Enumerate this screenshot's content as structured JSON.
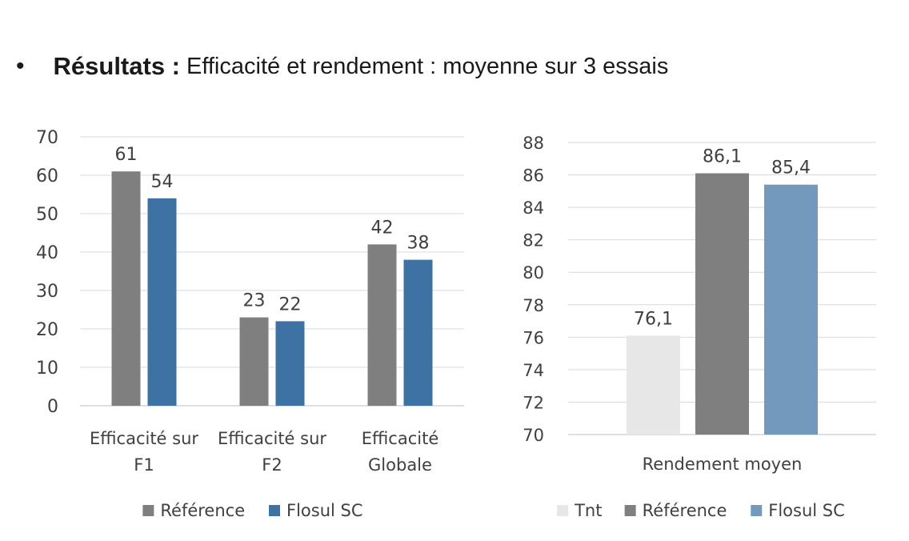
{
  "heading": {
    "bullet": "•",
    "bold": "Résultats :",
    "rest": "Efficacité et rendement : moyenne sur 3 essais"
  },
  "chart_data": [
    {
      "type": "bar",
      "categories": [
        [
          "Efficacité sur",
          "F1"
        ],
        [
          "Efficacité sur",
          "F2"
        ],
        [
          "Efficacité",
          "Globale"
        ]
      ],
      "series": [
        {
          "name": "Référence",
          "values": [
            61,
            23,
            42
          ],
          "color": "#7f7f7f"
        },
        {
          "name": "Flosul SC",
          "values": [
            54,
            22,
            38
          ],
          "color": "#3f72a4"
        }
      ],
      "ylim": [
        0,
        70
      ],
      "yticks": [
        0,
        10,
        20,
        30,
        40,
        50,
        60,
        70
      ],
      "grid": true,
      "data_labels": [
        "61",
        "54",
        "23",
        "22",
        "42",
        "38"
      ],
      "legend": "bottom"
    },
    {
      "type": "bar",
      "categories": [
        [
          "Rendement moyen"
        ]
      ],
      "series": [
        {
          "name": "Tnt",
          "values": [
            76.1
          ],
          "color": "#e7e7e7"
        },
        {
          "name": "Référence",
          "values": [
            86.1
          ],
          "color": "#7f7f7f"
        },
        {
          "name": "Flosul SC",
          "values": [
            85.4
          ],
          "color": "#7399bd"
        }
      ],
      "ylim": [
        70,
        88
      ],
      "yticks": [
        70,
        72,
        74,
        76,
        78,
        80,
        82,
        84,
        86,
        88
      ],
      "grid": true,
      "data_labels": [
        "76,1",
        "86,1",
        "85,4"
      ],
      "legend": "bottom"
    }
  ]
}
